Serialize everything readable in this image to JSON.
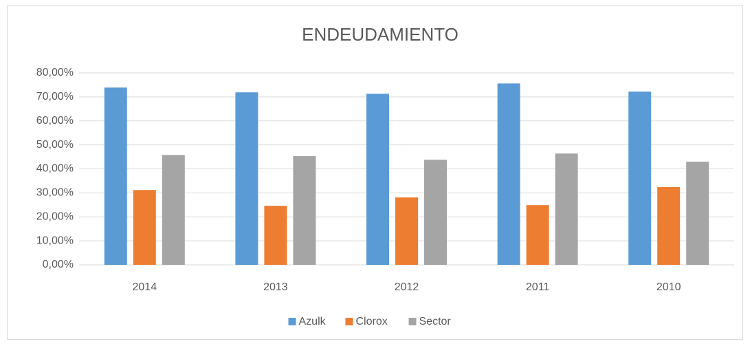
{
  "chart_data": {
    "type": "bar",
    "title": "ENDEUDAMIENTO",
    "categories": [
      "2014",
      "2013",
      "2012",
      "2011",
      "2010"
    ],
    "series": [
      {
        "name": "Azulk",
        "color": "#5b9bd5",
        "values": [
          73.9,
          71.9,
          71.3,
          75.6,
          72.2
        ]
      },
      {
        "name": "Clorox",
        "color": "#ed7d31",
        "values": [
          31.2,
          24.6,
          28.1,
          24.9,
          32.4
        ]
      },
      {
        "name": "Sector",
        "color": "#a5a5a5",
        "values": [
          45.8,
          45.3,
          43.8,
          46.4,
          43.0
        ]
      }
    ],
    "ylim": [
      0,
      80
    ],
    "yticks": [
      {
        "value": 0,
        "label": "0,00%"
      },
      {
        "value": 10,
        "label": "10,00%"
      },
      {
        "value": 20,
        "label": "20,00%"
      },
      {
        "value": 30,
        "label": "30,00%"
      },
      {
        "value": 40,
        "label": "40,00%"
      },
      {
        "value": 50,
        "label": "50,00%"
      },
      {
        "value": 60,
        "label": "60,00%"
      },
      {
        "value": 70,
        "label": "70,00%"
      },
      {
        "value": 80,
        "label": "80,00%"
      }
    ],
    "grid": true,
    "legend": "bottom"
  }
}
